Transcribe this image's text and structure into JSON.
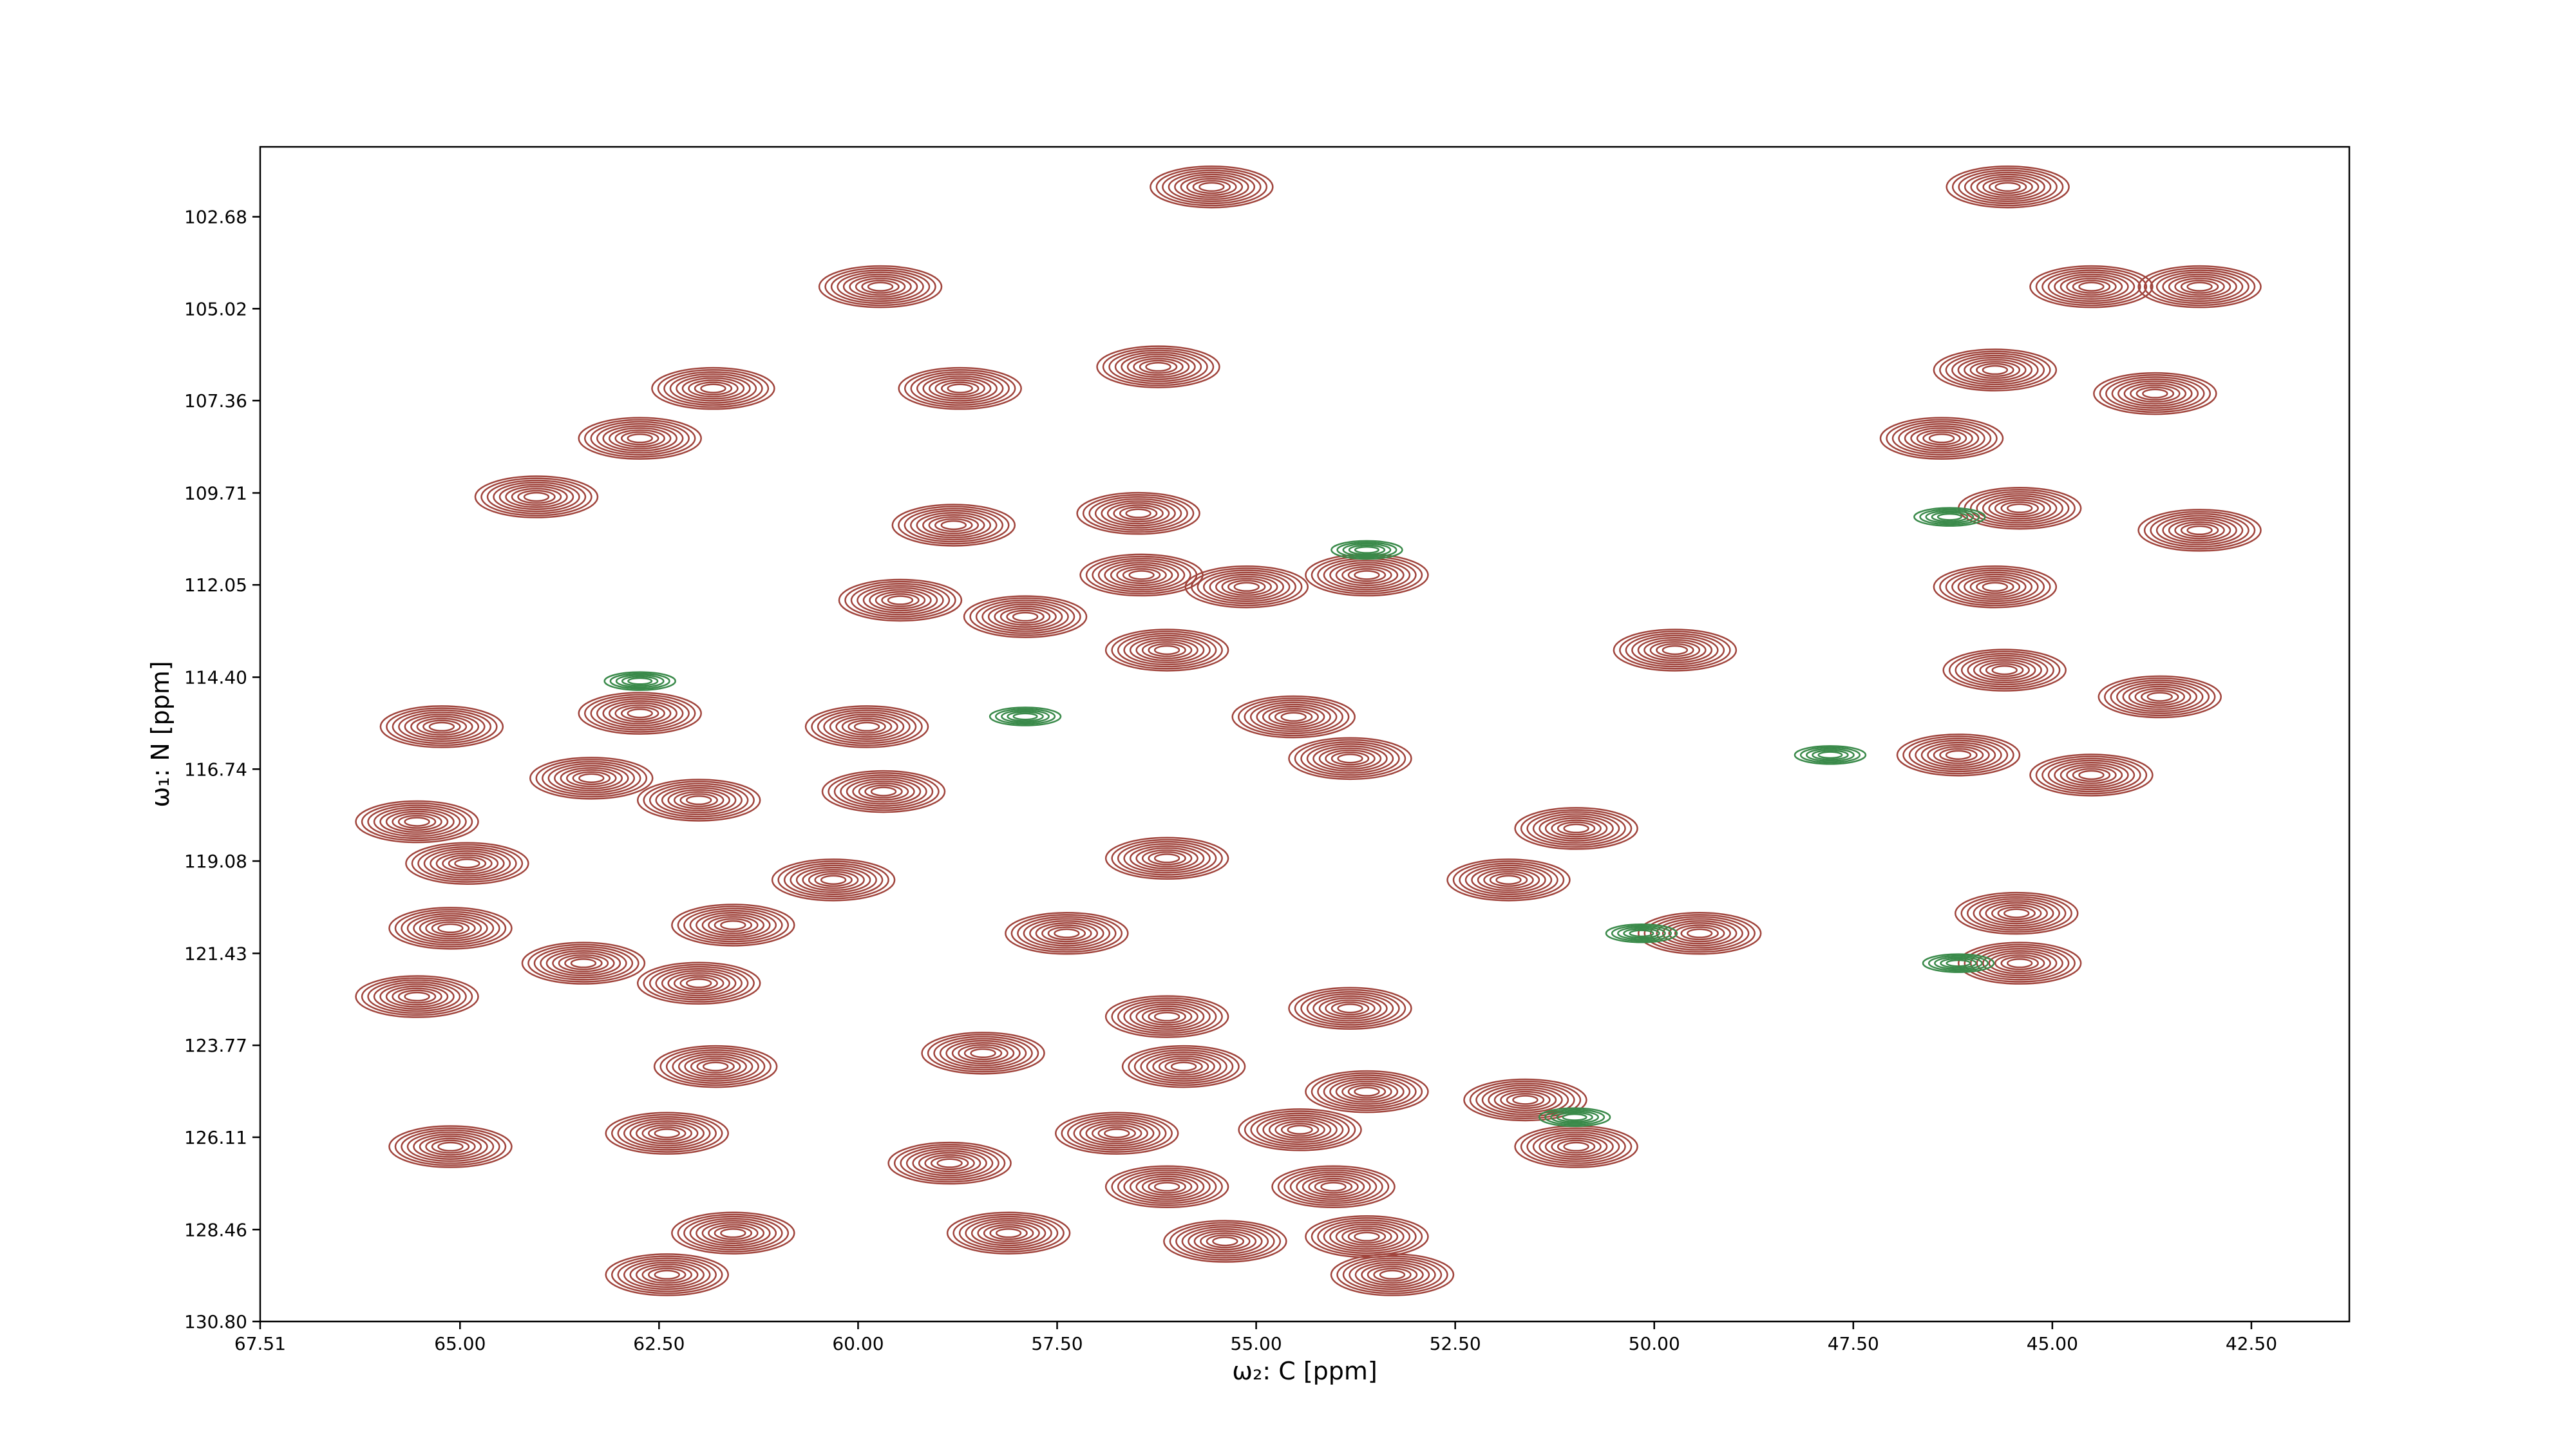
{
  "chart_data": {
    "type": "contour",
    "xlabel": "ω₂: C [ppm]",
    "ylabel": "ω₁: N [ppm]",
    "xlim": [
      67.51,
      41.27
    ],
    "ylim": [
      130.8,
      100.9
    ],
    "xticks": [
      67.51,
      {
        "value": 65,
        "label": "65.00"
      },
      {
        "value": 62.5,
        "label": "62.50"
      },
      {
        "value": 60,
        "label": "60.00"
      },
      {
        "value": 57.5,
        "label": "57.50"
      },
      {
        "value": 55,
        "label": "55.00"
      },
      {
        "value": 52.5,
        "label": "52.50"
      },
      {
        "value": 50,
        "label": "50.00"
      },
      {
        "value": 47.5,
        "label": "47.50"
      },
      {
        "value": 45,
        "label": "45.00"
      },
      {
        "value": 42.5,
        "label": "42.50"
      }
    ],
    "yticks": [
      102.68,
      105.02,
      107.36,
      109.71,
      112.05,
      {
        "value": 114.4,
        "label": "114.40"
      },
      116.74,
      119.08,
      121.43,
      123.77,
      126.11,
      128.46,
      {
        "value": 130.8,
        "label": "130.80"
      }
    ],
    "series": [
      {
        "color": "#a0443c",
        "x": [
          55.56,
          45.56,
          59.72,
          44.51,
          43.15,
          56.23,
          45.72,
          61.82,
          58.72,
          43.71,
          62.74,
          46.39,
          64.04,
          45.41,
          56.48,
          58.8,
          43.15,
          56.44,
          53.61,
          59.47,
          55.12,
          57.9,
          45.72,
          56.12,
          49.74,
          45.6,
          43.65,
          65.23,
          62.74,
          59.89,
          54.53,
          46.18,
          44.51,
          53.82,
          63.35,
          59.68,
          62.0,
          65.54,
          50.98,
          64.91,
          60.31,
          56.12,
          51.83,
          65.12,
          61.57,
          49.43,
          45.45,
          63.45,
          57.38,
          65.54,
          45.41,
          53.82,
          62.0,
          56.12,
          61.79,
          58.43,
          55.91,
          53.61,
          51.62,
          65.12,
          62.4,
          56.75,
          54.45,
          50.98,
          58.85,
          56.12,
          54.03,
          61.57,
          58.11,
          55.39,
          53.61,
          62.4,
          53.29
        ],
        "values": [
          101.92,
          101.92,
          104.46,
          104.46,
          104.46,
          106.5,
          106.58,
          107.05,
          107.05,
          107.18,
          108.32,
          108.32,
          109.81,
          110.1,
          110.23,
          110.53,
          110.66,
          111.8,
          111.8,
          112.44,
          112.1,
          112.86,
          112.1,
          113.71,
          113.71,
          114.22,
          114.9,
          115.66,
          115.32,
          115.66,
          115.41,
          116.38,
          116.89,
          116.47,
          116.97,
          117.31,
          117.53,
          118.08,
          118.25,
          119.14,
          119.56,
          119.01,
          119.56,
          120.79,
          120.71,
          120.92,
          120.41,
          121.68,
          120.92,
          122.53,
          121.68,
          122.83,
          122.19,
          123.04,
          124.31,
          123.97,
          124.31,
          124.95,
          125.16,
          126.35,
          126.01,
          126.01,
          125.92,
          126.35,
          126.77,
          127.37,
          127.37,
          128.55,
          128.55,
          128.76,
          128.64,
          129.61,
          129.61
        ]
      },
      {
        "color": "#3a8a4a",
        "x": [
          47.79,
          46.29,
          50.16,
          46.18,
          53.61,
          62.74,
          57.9,
          51.0
        ],
        "values": [
          116.38,
          110.32,
          120.92,
          121.68,
          111.16,
          114.5,
          115.4,
          125.6
        ]
      }
    ]
  }
}
